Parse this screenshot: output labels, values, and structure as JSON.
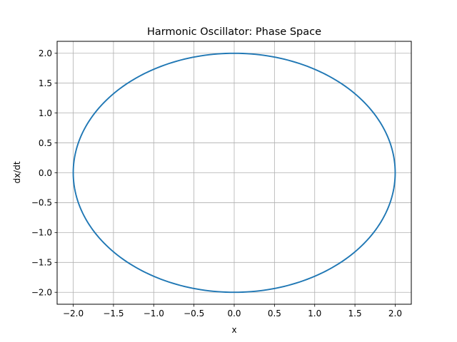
{
  "chart_data": {
    "type": "line",
    "title": "Harmonic Oscillator: Phase Space",
    "xlabel": "x",
    "ylabel": "dx/dt",
    "xlim": [
      -2.2,
      2.2
    ],
    "ylim": [
      -2.2,
      2.2
    ],
    "grid": true,
    "legend": "none",
    "xticks": [
      -2.0,
      -1.5,
      -1.0,
      -0.5,
      0.0,
      0.5,
      1.0,
      1.5,
      2.0
    ],
    "xtick_labels": [
      "−2.0",
      "−1.5",
      "−1.0",
      "−0.5",
      "0.0",
      "0.5",
      "1.0",
      "1.5",
      "2.0"
    ],
    "yticks": [
      -2.0,
      -1.5,
      -1.0,
      -0.5,
      0.0,
      0.5,
      1.0,
      1.5,
      2.0
    ],
    "ytick_labels": [
      "−2.0",
      "−1.5",
      "−1.0",
      "−0.5",
      "0.0",
      "0.5",
      "1.0",
      "1.5",
      "2.0"
    ],
    "series": [
      {
        "color": "#1f77b4",
        "shape": "closed-orbit",
        "x": [
          2.0,
          1.9319,
          1.7321,
          1.4142,
          1.0,
          0.5176,
          0.0,
          -0.5176,
          -1.0,
          -1.4142,
          -1.7321,
          -1.9319,
          -2.0,
          -1.9319,
          -1.7321,
          -1.4142,
          -1.0,
          -0.5176,
          0.0,
          0.5176,
          1.0,
          1.4142,
          1.7321,
          1.9319,
          2.0
        ],
        "y": [
          0.0,
          0.5176,
          1.0,
          1.4142,
          1.7321,
          1.9319,
          2.0,
          1.9319,
          1.7321,
          1.4142,
          1.0,
          0.5176,
          0.0,
          -0.5176,
          -1.0,
          -1.4142,
          -1.7321,
          -1.9319,
          -2.0,
          -1.9319,
          -1.7321,
          -1.4142,
          -1.0,
          -0.5176,
          0.0
        ]
      }
    ]
  },
  "colors": {
    "line": "#1f77b4",
    "grid": "#b0b0b0",
    "axes": "#000000"
  }
}
